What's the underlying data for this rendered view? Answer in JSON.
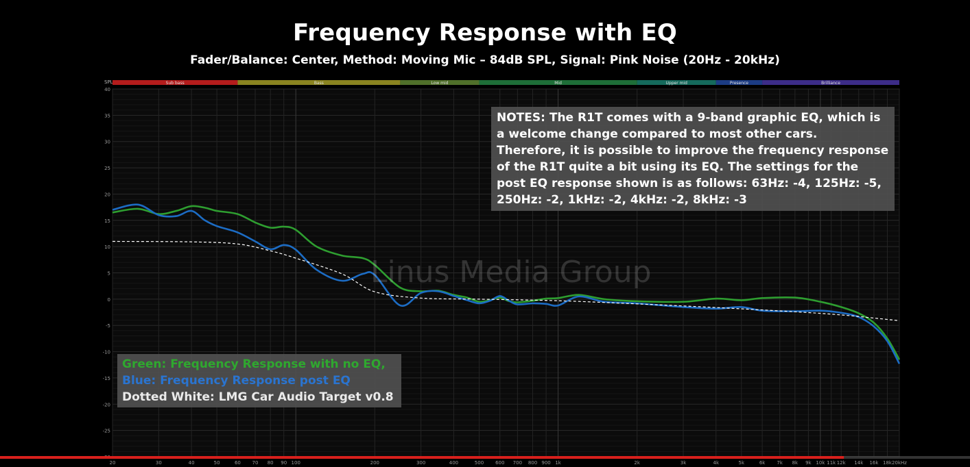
{
  "chart_data": {
    "type": "line",
    "title": "Frequency Response with EQ",
    "subtitle": "Fader/Balance: Center, Method: Moving Mic – 84dB SPL, Signal: Pink Noise (20Hz - 20kHz)",
    "ylabel": "SPL",
    "xscale": "log",
    "xlim": [
      20,
      20000
    ],
    "ylim": [
      -30,
      40
    ],
    "grid": true,
    "y_ticks": [
      40,
      35,
      30,
      25,
      20,
      15,
      10,
      5,
      0,
      -5,
      -10,
      -15,
      -20,
      -25,
      -30
    ],
    "x_ticks": [
      {
        "v": 20,
        "l": "20"
      },
      {
        "v": 30,
        "l": "30"
      },
      {
        "v": 40,
        "l": "40"
      },
      {
        "v": 50,
        "l": "50"
      },
      {
        "v": 60,
        "l": "60"
      },
      {
        "v": 70,
        "l": "70"
      },
      {
        "v": 80,
        "l": "80"
      },
      {
        "v": 90,
        "l": "90"
      },
      {
        "v": 100,
        "l": "100"
      },
      {
        "v": 200,
        "l": "200"
      },
      {
        "v": 300,
        "l": "300"
      },
      {
        "v": 400,
        "l": "400"
      },
      {
        "v": 500,
        "l": "500"
      },
      {
        "v": 600,
        "l": "600"
      },
      {
        "v": 700,
        "l": "700"
      },
      {
        "v": 800,
        "l": "800"
      },
      {
        "v": 900,
        "l": "900"
      },
      {
        "v": 1000,
        "l": "1k"
      },
      {
        "v": 2000,
        "l": "2k"
      },
      {
        "v": 3000,
        "l": "3k"
      },
      {
        "v": 4000,
        "l": "4k"
      },
      {
        "v": 5000,
        "l": "5k"
      },
      {
        "v": 6000,
        "l": "6k"
      },
      {
        "v": 7000,
        "l": "7k"
      },
      {
        "v": 8000,
        "l": "8k"
      },
      {
        "v": 9000,
        "l": "9k"
      },
      {
        "v": 10000,
        "l": "10k"
      },
      {
        "v": 11000,
        "l": "11k"
      },
      {
        "v": 12000,
        "l": "12k"
      },
      {
        "v": 14000,
        "l": "14k"
      },
      {
        "v": 16000,
        "l": "16k"
      },
      {
        "v": 18000,
        "l": "18k"
      },
      {
        "v": 20000,
        "l": "20kHz"
      }
    ],
    "bands": [
      {
        "name": "Sub bass",
        "from": 20,
        "to": 60,
        "color": "#b41c1c"
      },
      {
        "name": "Bass",
        "from": 60,
        "to": 250,
        "color": "#8a8420"
      },
      {
        "name": "Low mid",
        "from": 250,
        "to": 500,
        "color": "#50702a"
      },
      {
        "name": "Mid",
        "from": 500,
        "to": 2000,
        "color": "#1e6e38"
      },
      {
        "name": "Upper mid",
        "from": 2000,
        "to": 4000,
        "color": "#156a5c"
      },
      {
        "name": "Presence",
        "from": 4000,
        "to": 6000,
        "color": "#1c3c84"
      },
      {
        "name": "Brilliance",
        "from": 6000,
        "to": 20000,
        "color": "#3c2c88"
      }
    ],
    "series": [
      {
        "name": "Frequency Response with no EQ",
        "color": "#2e9e30",
        "x": [
          20,
          25,
          30,
          35,
          40,
          45,
          50,
          60,
          70,
          80,
          90,
          100,
          120,
          150,
          180,
          200,
          250,
          300,
          350,
          400,
          450,
          500,
          550,
          600,
          650,
          700,
          800,
          900,
          1000,
          1200,
          1500,
          2000,
          3000,
          4000,
          5000,
          6000,
          8000,
          10000,
          12000,
          14000,
          16000,
          18000,
          20000
        ],
        "y": [
          16.5,
          17.2,
          16.2,
          16.8,
          17.7,
          17.4,
          16.8,
          16.2,
          14.6,
          13.6,
          13.8,
          13.2,
          10.0,
          8.3,
          7.8,
          6.5,
          2.2,
          1.5,
          1.6,
          0.8,
          0.3,
          -0.5,
          -0.2,
          0.3,
          -0.4,
          -0.6,
          -0.3,
          0.1,
          0.2,
          0.8,
          0.0,
          -0.4,
          -0.5,
          0.1,
          -0.2,
          0.2,
          0.3,
          -0.5,
          -1.5,
          -2.7,
          -4.5,
          -7.5,
          -11.5
        ]
      },
      {
        "name": "Frequency Response post EQ",
        "color": "#1c6cc4",
        "x": [
          20,
          25,
          30,
          35,
          40,
          45,
          50,
          60,
          70,
          80,
          90,
          100,
          120,
          150,
          180,
          200,
          250,
          300,
          350,
          400,
          450,
          500,
          550,
          600,
          650,
          700,
          800,
          900,
          1000,
          1200,
          1500,
          2000,
          3000,
          4000,
          5000,
          6000,
          8000,
          10000,
          12000,
          14000,
          16000,
          18000,
          20000
        ],
        "y": [
          17.0,
          18.0,
          16.0,
          15.8,
          16.8,
          15.0,
          13.9,
          12.7,
          11.0,
          9.5,
          10.3,
          9.4,
          5.6,
          3.5,
          4.8,
          4.6,
          -1.2,
          1.2,
          1.5,
          0.6,
          -0.2,
          -0.8,
          -0.3,
          0.6,
          -0.3,
          -1.0,
          -0.8,
          -0.9,
          -1.2,
          0.5,
          -0.5,
          -0.8,
          -1.5,
          -1.8,
          -1.5,
          -2.2,
          -2.3,
          -2.2,
          -2.6,
          -3.4,
          -5.2,
          -8.0,
          -12.3
        ]
      },
      {
        "name": "LMG Car Audio Target v0.8",
        "color": "#ffffff",
        "dashed": true,
        "x": [
          20,
          40,
          60,
          80,
          100,
          150,
          200,
          300,
          500,
          1000,
          2000,
          4000,
          8000,
          12000,
          16000,
          20000
        ],
        "y": [
          11.0,
          10.9,
          10.5,
          9.2,
          7.8,
          4.8,
          1.4,
          0.2,
          0.0,
          -0.3,
          -0.9,
          -1.6,
          -2.4,
          -3.0,
          -3.6,
          -4.1
        ]
      }
    ]
  },
  "notes_text": "NOTES: The R1T comes with a 9-band graphic EQ, which is a welcome change compared to most other cars. Therefore, it is possible to improve the frequency response of the R1T quite a bit using its EQ. The settings for the post EQ response shown is as follows: 63Hz: -4, 125Hz: -5, 250Hz: -2, 1kHz: -2, 4kHz: -2, 8kHz: -3",
  "legend": {
    "green": "Green: Frequency Response with no EQ,",
    "blue": "Blue: Frequency Response post EQ",
    "white": "Dotted White: LMG Car Audio Target v0.8"
  },
  "watermark": "Linus Media Group",
  "colors": {
    "background": "#000000",
    "grid": "#2a2a2a",
    "legend_green": "#2fa82f",
    "legend_blue": "#2a74d0",
    "progress_bar": "#d8201c"
  },
  "progress": 0.87
}
